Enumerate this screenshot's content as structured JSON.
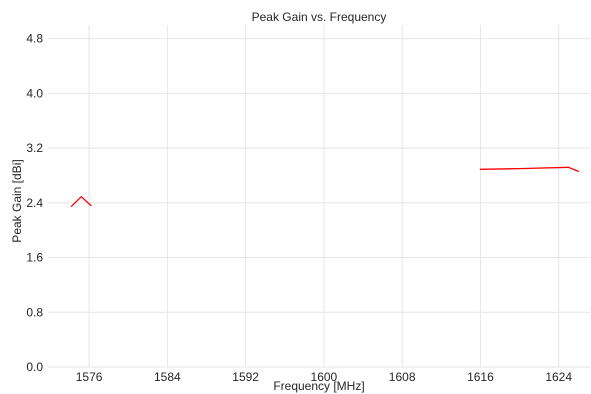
{
  "chart_data": {
    "type": "line",
    "title": "Peak Gain vs. Frequency",
    "xlabel": "Frequency [MHz]",
    "ylabel": "Peak Gain [dBi]",
    "xlim": [
      1571.8,
      1627.2
    ],
    "ylim": [
      0.0,
      5.0
    ],
    "x_ticks": [
      1576,
      1584,
      1592,
      1600,
      1608,
      1616,
      1624
    ],
    "x_tick_labels": [
      "1576",
      "1584",
      "1592",
      "1600",
      "1608",
      "1616",
      "1624"
    ],
    "y_ticks": [
      0.0,
      0.8,
      1.6,
      2.4,
      3.2,
      4.0,
      4.8
    ],
    "y_tick_labels": [
      "0.0",
      "0.8",
      "1.6",
      "2.4",
      "3.2",
      "4.0",
      "4.8"
    ],
    "grid": true,
    "colors": {
      "series": "#ff0000",
      "grid": "#e6e6e6",
      "text": "#262626"
    },
    "series": [
      {
        "segments": [
          {
            "x": [
              1574.2,
              1575.2,
              1576.2
            ],
            "y": [
              2.35,
              2.49,
              2.36
            ]
          },
          {
            "x": [
              1616.0,
              1620.0,
              1625.0,
              1626.0
            ],
            "y": [
              2.89,
              2.9,
              2.92,
              2.86
            ]
          }
        ]
      }
    ]
  }
}
